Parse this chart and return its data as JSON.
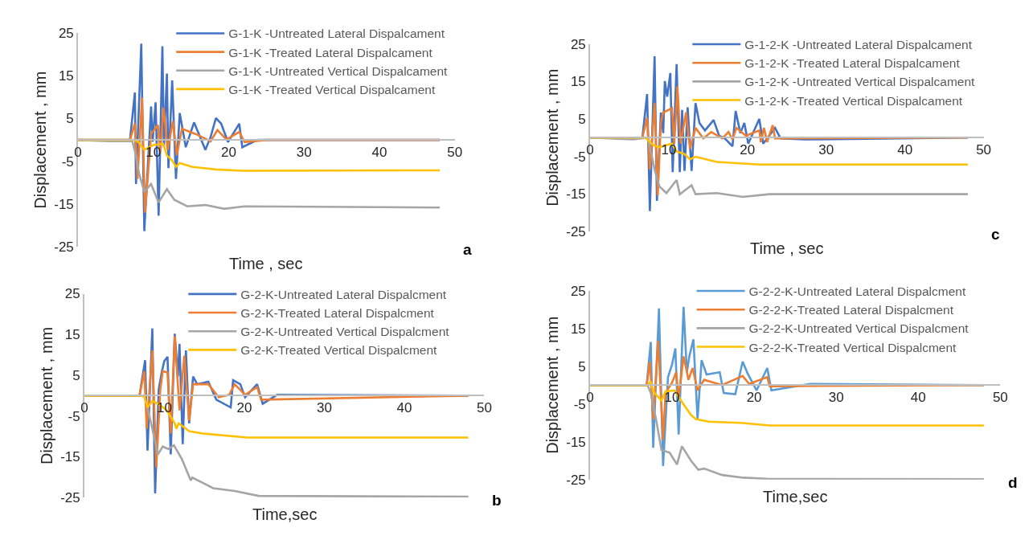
{
  "chart_data": [
    {
      "type": "line",
      "xlabel": "Time , sec",
      "ylabel": "Displacement , mm",
      "xlim": [
        0,
        50
      ],
      "ylim": [
        -25,
        25
      ],
      "xticks": [
        0,
        10,
        20,
        30,
        40,
        50
      ],
      "yticks": [
        -25,
        -15,
        -5,
        5,
        15,
        25
      ],
      "legend": "top right",
      "annotations": [
        "a"
      ],
      "series": [
        {
          "name": "G-1-K -Untreated Lateral Dispalcament",
          "color": "#4472c4",
          "x": [
            0,
            6.9,
            7.55,
            7.7,
            8.4,
            8.8,
            9.7,
            9.9,
            10.3,
            10.7,
            11.2,
            11.4,
            11.8,
            12.0,
            12.5,
            13.0,
            13.5,
            14.3,
            15.4,
            16.9,
            17.6,
            18.3,
            19,
            19.9,
            21.4,
            21.8,
            23.8,
            48
          ],
          "values": [
            0,
            0,
            11.1,
            -10.3,
            22.5,
            -21.3,
            7.8,
            -0.4,
            8.8,
            -17.7,
            21.9,
            -1.7,
            15.5,
            -6.6,
            13.9,
            -9.1,
            6.3,
            -1.7,
            4.1,
            -2.3,
            0.7,
            5.1,
            3.8,
            -0.5,
            3.8,
            -1.7,
            0,
            0
          ]
        },
        {
          "name": "G-1-K -Treated Lateral Dispalcament",
          "color": "#ed7d31",
          "x": [
            0,
            6.9,
            7.55,
            7.9,
            8.5,
            8.9,
            9.7,
            10.6,
            10.9,
            11.35,
            11.9,
            12.6,
            13.1,
            13.8,
            15.6,
            17.6,
            18.5,
            19.7,
            21.4,
            22.1,
            25,
            48
          ],
          "values": [
            0,
            0,
            3.9,
            -9.1,
            9.9,
            -17,
            1.4,
            3.5,
            -2.9,
            7.5,
            -2.3,
            4.4,
            -3.6,
            2.6,
            1.4,
            -0.3,
            2.3,
            0.1,
            1.9,
            -0.5,
            0,
            0
          ]
        },
        {
          "name": "G-1-K -Untreated Vertical Dispalcament",
          "color": "#a5a5a5",
          "x": [
            0,
            4,
            7.2,
            7.6,
            8.1,
            8.8,
            9.7,
            10.7,
            11.8,
            12.8,
            14.5,
            16.9,
            19.4,
            22.1,
            48
          ],
          "values": [
            0,
            -0.3,
            -0.3,
            -2.9,
            -7.8,
            -12.1,
            -10.3,
            -14.6,
            -11.5,
            -14,
            -15.5,
            -15.2,
            -16.1,
            -15.5,
            -15.8
          ]
        },
        {
          "name": "G-1-K -Treated Vertical Dispalcament",
          "color": "#ffc000",
          "x": [
            0,
            7.5,
            8,
            8.8,
            10,
            11.3,
            11.8,
            12.5,
            13,
            13.5,
            15.2,
            18.3,
            21.8,
            48
          ],
          "values": [
            0,
            0,
            -0.5,
            -2.3,
            -1.2,
            -0.9,
            -3.6,
            -4.8,
            -6.3,
            -5.4,
            -6.3,
            -6.9,
            -7.2,
            -7.1
          ]
        }
      ]
    },
    {
      "type": "line",
      "xlabel": "Time , sec",
      "ylabel": "Displacement , mm",
      "xlim": [
        0,
        50
      ],
      "ylim": [
        -25,
        25
      ],
      "xticks": [
        0,
        10,
        20,
        30,
        40,
        50
      ],
      "yticks": [
        -25,
        -15,
        -5,
        5,
        15,
        25
      ],
      "legend": "top right",
      "annotations": [
        "c"
      ],
      "series": [
        {
          "name": "G-1-2-K -Untreated Lateral Dispalcament",
          "color": "#4472c4",
          "x": [
            0,
            6.65,
            7.25,
            7.6,
            8.2,
            8.5,
            9.0,
            9.3,
            9.5,
            9.8,
            10.2,
            10.5,
            11.0,
            11.4,
            11.7,
            12.0,
            12.4,
            12.9,
            13.4,
            13.9,
            14.6,
            15.7,
            16.4,
            17.1,
            18.1,
            18.5,
            19.1,
            19.6,
            20.1,
            21.5,
            22.0,
            23.5,
            24.2,
            27.2,
            48
          ],
          "values": [
            0,
            0,
            11.6,
            -19.6,
            21.7,
            -16.9,
            6.7,
            1.2,
            15.1,
            10.9,
            17.2,
            -9.2,
            19.6,
            -9.2,
            7.4,
            -8.9,
            8.1,
            -8.9,
            9.2,
            3.9,
            1.9,
            4.7,
            0.5,
            -0.2,
            -2.3,
            7.1,
            1.2,
            3.9,
            -1.6,
            5.0,
            -1.6,
            2.6,
            -0.2,
            -0.5,
            0
          ]
        },
        {
          "name": "G-1-2-K -Treated Lateral Dispalcament",
          "color": "#ed7d31",
          "x": [
            0,
            6.65,
            7.25,
            7.6,
            8.2,
            8.6,
            9.0,
            9.3,
            10.4,
            10.7,
            11.1,
            11.5,
            12.2,
            12.7,
            13.4,
            14.4,
            15.4,
            16.8,
            17.6,
            18.1,
            18.6,
            19.8,
            21.5,
            21.7,
            22.1,
            22.5,
            23.2,
            23.5,
            48
          ],
          "values": [
            0,
            0,
            5.3,
            -8.5,
            9.2,
            -15.5,
            4.0,
            6.7,
            7.8,
            -1.6,
            13.7,
            -1.6,
            6.7,
            -3.0,
            2.6,
            -0.2,
            1.5,
            -0.2,
            1.5,
            -0.5,
            2.6,
            0.5,
            1.9,
            -1.2,
            2.6,
            -1.2,
            3.3,
            -0.2,
            0
          ]
        },
        {
          "name": "G-1-2-K -Untreated Vertical Dispalcament",
          "color": "#a5a5a5",
          "x": [
            0,
            5.5,
            7.3,
            7.8,
            8.2,
            8.8,
            9.7,
            11,
            11.4,
            12.9,
            13.4,
            16.1,
            19.4,
            22.8,
            48
          ],
          "values": [
            0,
            -0.5,
            0,
            -4.4,
            -8.5,
            -13,
            -14.8,
            -11.3,
            -15.1,
            -12.7,
            -15.1,
            -14.8,
            -15.8,
            -15.1,
            -15.1
          ]
        },
        {
          "name": "G-1-2-K -Treated Vertical Dispalcament",
          "color": "#ffc000",
          "x": [
            0,
            7,
            7.3,
            8,
            8.7,
            10.4,
            11,
            12,
            12.7,
            13.4,
            16.1,
            21.5,
            48
          ],
          "values": [
            0,
            0,
            -0.5,
            -1.9,
            -2.6,
            -1.6,
            -3.7,
            -4.4,
            -5.8,
            -5.1,
            -6.5,
            -7.2,
            -7.2
          ]
        }
      ]
    },
    {
      "type": "line",
      "xlabel": "Time,sec",
      "ylabel": "Displacement , mm",
      "xlim": [
        0,
        50
      ],
      "ylim": [
        -25,
        25
      ],
      "xticks": [
        0,
        10,
        20,
        30,
        40,
        50
      ],
      "yticks": [
        -25,
        -15,
        -5,
        5,
        15,
        25
      ],
      "legend": "top right",
      "annotations": [
        "b"
      ],
      "series": [
        {
          "name": "G-2-K-Untreated Lateral Dispalcment",
          "color": "#4472c4",
          "x": [
            0,
            6.9,
            7.6,
            7.9,
            8.5,
            8.85,
            9.3,
            9.7,
            10,
            10.4,
            10.8,
            11.3,
            11.7,
            11.9,
            12.3,
            12.7,
            13.1,
            13.6,
            14.1,
            15.5,
            16.5,
            18.3,
            18.6,
            19.5,
            20.1,
            21.6,
            22.3,
            24.1,
            48
          ],
          "values": [
            0,
            0,
            8.7,
            -13.5,
            16.5,
            -24,
            1.5,
            6.0,
            8.5,
            9.5,
            -14.4,
            15.2,
            4.7,
            12.7,
            -11.9,
            11.1,
            -6.8,
            4.7,
            2.8,
            3.4,
            -1.0,
            -2.9,
            3.8,
            2.8,
            -0.4,
            2.8,
            -2.0,
            0.2,
            0
          ]
        },
        {
          "name": "G-2-K-Treated Lateral Dispalcment",
          "color": "#ed7d31",
          "x": [
            0,
            6.9,
            7.5,
            7.8,
            8.5,
            9,
            9.5,
            9.8,
            10.4,
            10.8,
            11.3,
            11.9,
            12.5,
            13.1,
            13.6,
            15.5,
            16.8,
            18.1,
            18.8,
            20.1,
            21.6,
            22.1,
            48
          ],
          "values": [
            0,
            0,
            6.0,
            -8.1,
            11.1,
            -17.6,
            1.5,
            6.0,
            5.7,
            -9.3,
            14.6,
            -3.6,
            9.8,
            -6.1,
            2.8,
            2.8,
            -0.4,
            0.2,
            2.8,
            0.2,
            2.1,
            -1.0,
            0
          ]
        },
        {
          "name": "G-2-K-Untreated Vertical Dispalcment",
          "color": "#a5a5a5",
          "x": [
            0,
            7.5,
            8.2,
            8.85,
            9.2,
            9.8,
            10.5,
            11.2,
            12.2,
            13.3,
            13.5,
            14.2,
            16.1,
            18.8,
            21.8,
            48
          ],
          "values": [
            0,
            0,
            -5.5,
            -11.2,
            -14.4,
            -12.5,
            -13.1,
            -12.2,
            -15.6,
            -20.8,
            -20.1,
            -20.8,
            -22.7,
            -23.4,
            -24.6,
            -24.8
          ]
        },
        {
          "name": "G-2-K-Treated Vertical Dispalcment",
          "color": "#ffc000",
          "x": [
            0,
            7.2,
            7.5,
            7.9,
            8.5,
            9.5,
            10.3,
            11.3,
            11.5,
            11.8,
            13.1,
            14.8,
            20.4,
            48
          ],
          "values": [
            0,
            0,
            -0.3,
            -2.9,
            -1.3,
            -2.3,
            -3.6,
            -6.8,
            -8.1,
            -6.8,
            -8.7,
            -9.3,
            -10.3,
            -10.3
          ]
        }
      ]
    },
    {
      "type": "line",
      "xlabel": "Time,sec",
      "ylabel": "Displacement , mm",
      "xlim": [
        0,
        50
      ],
      "ylim": [
        -25,
        25
      ],
      "xticks": [
        0,
        10,
        20,
        30,
        40,
        50
      ],
      "yticks": [
        -25,
        -15,
        -5,
        5,
        15,
        25
      ],
      "legend": "top right",
      "annotations": [
        "d"
      ],
      "series": [
        {
          "name": "G-2-2-K-Untreated Lateral Dispalcment",
          "color": "#5b9bd5",
          "x": [
            0,
            6.9,
            7.4,
            7.7,
            8.4,
            8.9,
            9.5,
            10,
            10.4,
            10.8,
            11.4,
            11.8,
            12.1,
            12.6,
            13.1,
            13.6,
            14.2,
            15.8,
            16.3,
            17.7,
            18.6,
            19.2,
            20.3,
            21.6,
            22.1,
            26.8,
            48
          ],
          "values": [
            0,
            0,
            11.4,
            -16.6,
            20.3,
            -21.4,
            2.1,
            5.5,
            9.7,
            -13.1,
            20.7,
            3.4,
            7.6,
            12.1,
            -9.0,
            6.6,
            2.8,
            3.4,
            -2.1,
            -2.4,
            6.2,
            3.1,
            -1.4,
            4.5,
            -1.4,
            0.3,
            0
          ]
        },
        {
          "name": "G-2-2-K-Treated Lateral Dispalcment",
          "color": "#ed7d31",
          "x": [
            0,
            6.9,
            7.3,
            7.7,
            8.3,
            8.9,
            9.2,
            10,
            10.5,
            10.8,
            11.4,
            12,
            12.5,
            13.1,
            13.9,
            16.1,
            18.6,
            19.4,
            21.6,
            21.9,
            48
          ],
          "values": [
            0,
            0,
            6.2,
            -9.0,
            11.7,
            -14.5,
            -2.1,
            0.7,
            3.4,
            -3.4,
            7.6,
            1.4,
            4.5,
            -1.4,
            1.4,
            0,
            2.4,
            0.3,
            2.1,
            -0.3,
            0
          ]
        },
        {
          "name": "G-2-2-K-Untreated Vertical Dispalcment",
          "color": "#a5a5a5",
          "x": [
            0,
            7,
            7.4,
            8.1,
            8.7,
            9.7,
            10.6,
            11.2,
            12.3,
            13.2,
            13.9,
            16.1,
            18.7,
            21.6,
            48
          ],
          "values": [
            0,
            0,
            -2.1,
            -9.7,
            -17.2,
            -17.9,
            -21.0,
            -16.2,
            -20.0,
            -22.4,
            -22.1,
            -23.8,
            -24.5,
            -24.8,
            -24.9
          ]
        },
        {
          "name": "G-2-2-K-Treated Vertical Dispalcment",
          "color": "#ffc000",
          "x": [
            0,
            7,
            7.4,
            7.7,
            8.7,
            9.2,
            10.3,
            11.3,
            12.3,
            12.9,
            14.5,
            18.4,
            21.9,
            48
          ],
          "values": [
            0,
            0,
            1.0,
            -1.7,
            -4.1,
            -1.7,
            -1.4,
            -4.8,
            -7.9,
            -9.0,
            -9.7,
            -10.0,
            -10.7,
            -10.7
          ]
        }
      ]
    }
  ]
}
